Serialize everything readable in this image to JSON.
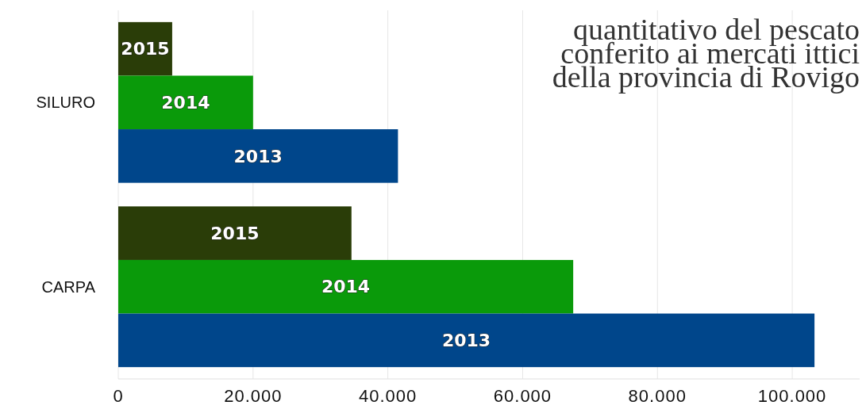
{
  "chart_data": {
    "type": "bar",
    "orientation": "horizontal",
    "title": "quantitativo del pescato\nconferito ai mercati ittici\ndella provincia di Rovigo",
    "categories": [
      "SILURO",
      "CARPA"
    ],
    "series": [
      {
        "name": "2015",
        "color": "#2a3d08",
        "values": [
          8000,
          34600
        ]
      },
      {
        "name": "2014",
        "color": "#0a9a0a",
        "values": [
          20000,
          67500
        ]
      },
      {
        "name": "2013",
        "color": "#00468b",
        "values": [
          41500,
          103300
        ]
      }
    ],
    "xlim": [
      0,
      110000
    ],
    "xticks": [
      0,
      {
        "value": 20000,
        "label": "20.000"
      },
      {
        "value": 40000,
        "label": "40.000"
      },
      {
        "value": 60000,
        "label": "60.000"
      },
      {
        "value": 80000,
        "label": "80.000"
      },
      {
        "value": 100000,
        "label": "100.000"
      }
    ],
    "grid": "x"
  }
}
